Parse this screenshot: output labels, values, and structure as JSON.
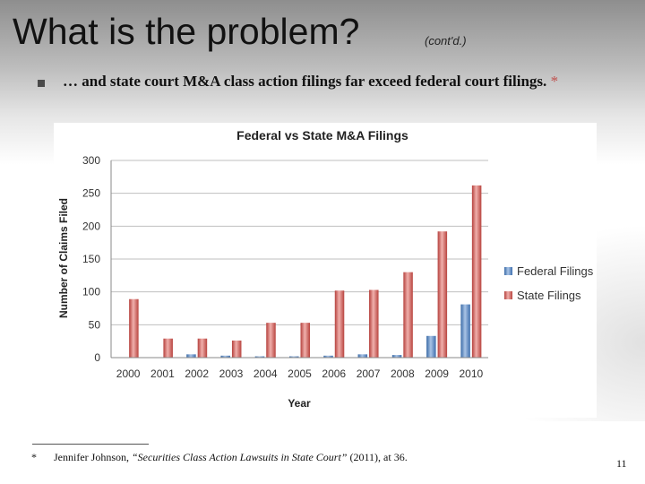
{
  "slide": {
    "title": "What is the problem?",
    "subtitle": "(cont'd.)",
    "bullet_text": "… and state court M&A class action filings far exceed federal court filings.",
    "bullet_asterisk": "*",
    "footnote_mark": "*",
    "footnote_author": "Jennifer Johnson,",
    "footnote_title": "“Securities Class Action Lawsuits in State Court”",
    "footnote_tail": "(2011), at 36.",
    "page_number": "11"
  },
  "colors": {
    "federal": "#4f81bd",
    "state": "#c0504d",
    "bullet_marker": "#4a4a4a"
  },
  "chart_data": {
    "type": "bar",
    "title": "Federal vs State M&A Filings",
    "xlabel": "Year",
    "ylabel": "Number of Claims Filed",
    "categories": [
      "2000",
      "2001",
      "2002",
      "2003",
      "2004",
      "2005",
      "2006",
      "2007",
      "2008",
      "2009",
      "2010"
    ],
    "series": [
      {
        "name": "Federal Filings",
        "values": [
          0,
          0,
          5,
          3,
          2,
          2,
          3,
          5,
          4,
          33,
          81
        ]
      },
      {
        "name": "State Filings",
        "values": [
          89,
          29,
          29,
          26,
          53,
          53,
          102,
          103,
          130,
          192,
          262
        ]
      }
    ],
    "ylim": [
      0,
      300
    ],
    "yticks": [
      0,
      50,
      100,
      150,
      200,
      250,
      300
    ],
    "grid": true,
    "legend": "right"
  }
}
